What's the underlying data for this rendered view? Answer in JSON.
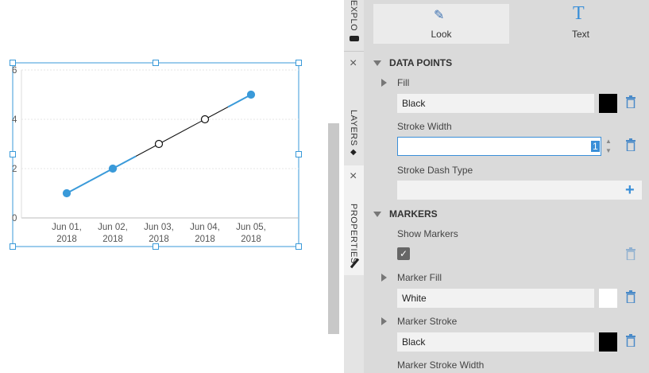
{
  "chart_data": {
    "type": "line",
    "x": [
      "Jun 01, 2018",
      "Jun 02, 2018",
      "Jun 03, 2018",
      "Jun 04, 2018",
      "Jun 05, 2018"
    ],
    "series": [
      {
        "values": [
          1,
          2,
          3,
          4,
          5
        ],
        "line_colors": [
          "#3a9ad9",
          "#3a9ad9",
          "#111111",
          "#111111",
          "#3a9ad9"
        ],
        "marker_fills": [
          "#3a9ad9",
          "#3a9ad9",
          "#ffffff",
          "#ffffff",
          "#3a9ad9"
        ],
        "marker_strokes": [
          "#3a9ad9",
          "#3a9ad9",
          "#111111",
          "#111111",
          "#3a9ad9"
        ]
      }
    ],
    "ylim": [
      0,
      6
    ],
    "yticks": [
      0,
      2,
      4,
      6
    ],
    "grid": true
  },
  "side_tabs": [
    "EXPLORER",
    "LAYERS",
    "PROPERTIES"
  ],
  "tabs": [
    "Look",
    "Text"
  ],
  "panel": {
    "data_points": {
      "title": "DATA POINTS",
      "fill_label": "Fill",
      "fill_value": "Black",
      "stroke_width_label": "Stroke Width",
      "stroke_width_value": "1",
      "stroke_dash_label": "Stroke Dash Type"
    },
    "markers": {
      "title": "MARKERS",
      "show_label": "Show Markers",
      "fill_label": "Marker Fill",
      "fill_value": "White",
      "stroke_label": "Marker Stroke",
      "stroke_value": "Black",
      "stroke_width_label": "Marker Stroke Width"
    }
  }
}
